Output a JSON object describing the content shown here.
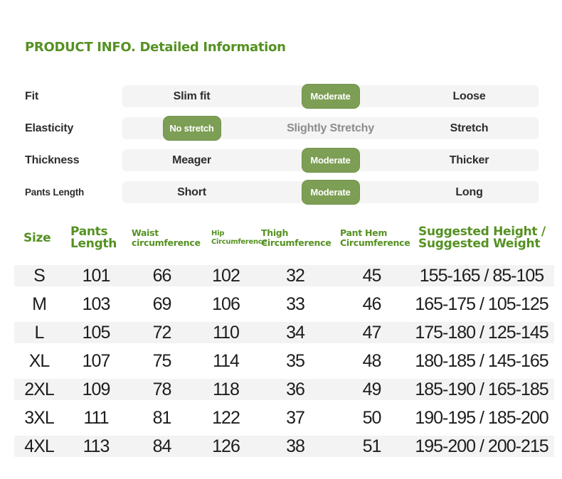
{
  "page": {
    "title": "PRODUCT INFO. Detailed Information"
  },
  "colors": {
    "accent_green": "#559122",
    "badge_green": "#7d9e55",
    "scale_bar_gray": "#f4f4f4",
    "row_stripe_gray": "#f2f3f2",
    "text_dark": "#1d1d1d",
    "muted_option_gray": "#8c8c8c"
  },
  "attributes": [
    {
      "label": "Fit",
      "options": [
        {
          "label": "Slim fit",
          "selected": false
        },
        {
          "label": "Moderate",
          "selected": true
        },
        {
          "label": "Loose",
          "selected": false
        }
      ]
    },
    {
      "label": "Elasticity",
      "options": [
        {
          "label": "No stretch",
          "selected": true
        },
        {
          "label": "Slightly Stretchy",
          "selected": false
        },
        {
          "label": "Stretch",
          "selected": false
        }
      ]
    },
    {
      "label": "Thickness",
      "options": [
        {
          "label": "Meager",
          "selected": false
        },
        {
          "label": "Moderate",
          "selected": true
        },
        {
          "label": "Thicker",
          "selected": false
        }
      ]
    },
    {
      "label": "Pants Length",
      "options": [
        {
          "label": "Short",
          "selected": false
        },
        {
          "label": "Moderate",
          "selected": true
        },
        {
          "label": "Long",
          "selected": false
        }
      ]
    }
  ],
  "size_table": {
    "columns": [
      "Size",
      "Pants\nLength",
      "Waist\ncircumference",
      "Hip\nCircumference",
      "Thigh\nCircumference",
      "Pant Hem\nCircumference",
      "Suggested Height /\nSuggested Weight"
    ],
    "rows": [
      {
        "size": "S",
        "pants_length": "101",
        "waist": "66",
        "hip": "102",
        "thigh": "32",
        "pant_hem": "45",
        "suggested": "155-165 /  85-105"
      },
      {
        "size": "M",
        "pants_length": "103",
        "waist": "69",
        "hip": "106",
        "thigh": "33",
        "pant_hem": "46",
        "suggested": "165-175 / 105-125"
      },
      {
        "size": "L",
        "pants_length": "105",
        "waist": "72",
        "hip": "110",
        "thigh": "34",
        "pant_hem": "47",
        "suggested": "175-180 / 125-145"
      },
      {
        "size": "XL",
        "pants_length": "107",
        "waist": "75",
        "hip": "114",
        "thigh": "35",
        "pant_hem": "48",
        "suggested": "180-185 / 145-165"
      },
      {
        "size": "2XL",
        "pants_length": "109",
        "waist": "78",
        "hip": "118",
        "thigh": "36",
        "pant_hem": "49",
        "suggested": "185-190 / 165-185"
      },
      {
        "size": "3XL",
        "pants_length": "111",
        "waist": "81",
        "hip": "122",
        "thigh": "37",
        "pant_hem": "50",
        "suggested": "190-195 / 185-200"
      },
      {
        "size": "4XL",
        "pants_length": "113",
        "waist": "84",
        "hip": "126",
        "thigh": "38",
        "pant_hem": "51",
        "suggested": "195-200 / 200-215"
      }
    ]
  }
}
